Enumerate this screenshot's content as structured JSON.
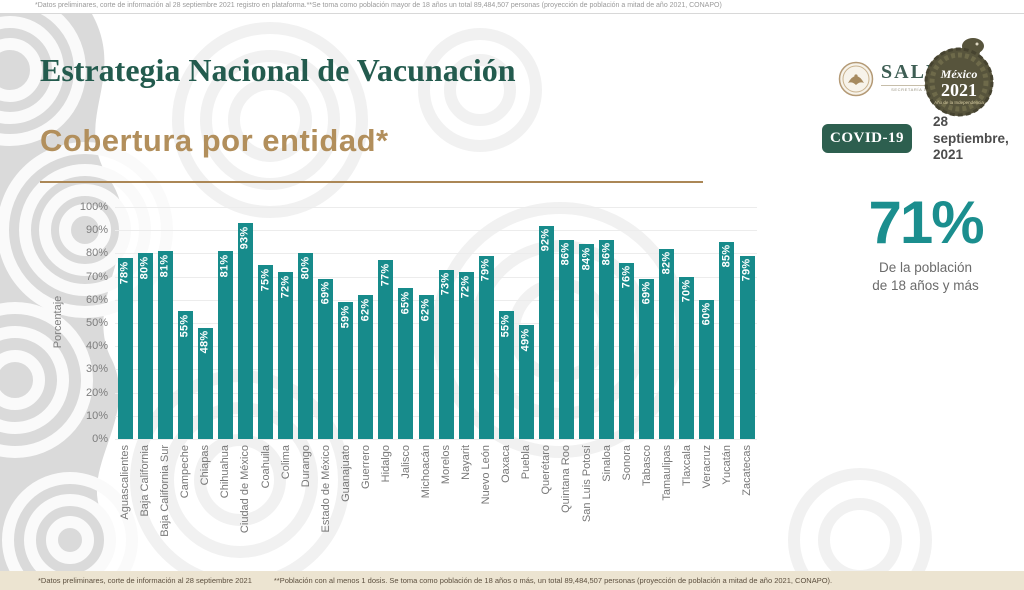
{
  "top_note": "*Datos preliminares, corte de información al 28 septiembre 2021 registro en plataforma.**Se toma como población mayor de 18 años un total 89,484,507 personas (proyección de población a mitad de año 2021, CONAPO)",
  "header": {
    "title": "Estrategia Nacional de Vacunación",
    "subtitle": "Cobertura por entidad*",
    "salud": {
      "name": "SALUD",
      "subtext": "SECRETARÍA DE SALUD"
    },
    "emblem": {
      "name": "México",
      "year": "2021",
      "subtext": "Año de la Independencia"
    },
    "covid_badge": "COVID-19",
    "date": {
      "l1": "28",
      "l2": "septiembre,",
      "l3": "2021"
    }
  },
  "chart_data": {
    "type": "bar",
    "title": "Cobertura por entidad*",
    "xlabel": "",
    "ylabel": "Porcentaje",
    "ylim": [
      0,
      100
    ],
    "ytick_step": 10,
    "value_suffix": "%",
    "grid": true,
    "bar_color": "#178b8b",
    "categories": [
      "Aguascalientes",
      "Baja California",
      "Baja California Sur",
      "Campeche",
      "Chiapas",
      "Chihuahua",
      "Ciudad de México",
      "Coahuila",
      "Colima",
      "Durango",
      "Estado de México",
      "Guanajuato",
      "Guerrero",
      "Hidalgo",
      "Jalisco",
      "Michoacán",
      "Morelos",
      "Nayarit",
      "Nuevo León",
      "Oaxaca",
      "Puebla",
      "Querétaro",
      "Quintana Roo",
      "San Luis Potosí",
      "Sinaloa",
      "Sonora",
      "Tabasco",
      "Tamaulipas",
      "Tlaxcala",
      "Veracruz",
      "Yucatán",
      "Zacatecas"
    ],
    "values": [
      78,
      80,
      81,
      55,
      48,
      81,
      93,
      75,
      72,
      80,
      69,
      59,
      62,
      77,
      65,
      62,
      73,
      72,
      79,
      55,
      49,
      92,
      86,
      84,
      86,
      76,
      69,
      82,
      70,
      60,
      85,
      79
    ]
  },
  "summary": {
    "value": "71%",
    "caption1": "De la población",
    "caption2": "de 18 años y más"
  },
  "footer": {
    "note1": "*Datos preliminares, corte de información al 28 septiembre 2021",
    "note2": "**Población con al menos 1 dosis. Se toma como población de 18 años o más, un total 89,484,507 personas (proyección de población a mitad de año 2021, CONAPO)."
  },
  "colors": {
    "teal": "#178b8b",
    "title_green": "#235b4e",
    "gold": "#ab8756",
    "badge_green": "#2d5f4f",
    "footer_bg": "#ece4d1"
  }
}
